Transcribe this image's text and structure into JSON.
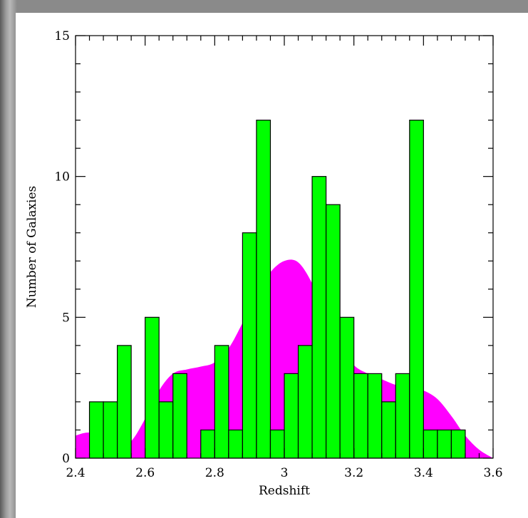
{
  "chart_data": {
    "type": "bar",
    "xlabel": "Redshift",
    "ylabel": "Number of Galaxies",
    "xlim": [
      2.4,
      3.6
    ],
    "ylim": [
      0,
      15
    ],
    "x_ticks": [
      2.4,
      2.6,
      2.8,
      3,
      3.2,
      3.4,
      3.6
    ],
    "x_tick_labels": [
      "2.4",
      "2.6",
      "2.8",
      "3",
      "3.2",
      "3.4",
      "3.6"
    ],
    "y_ticks": [
      0,
      5,
      10,
      15
    ],
    "y_tick_labels": [
      "0",
      "5",
      "10",
      "15"
    ],
    "bin_width": 0.04,
    "histogram": {
      "color": "#00ff00",
      "bin_starts": [
        2.44,
        2.48,
        2.52,
        2.6,
        2.64,
        2.68,
        2.76,
        2.8,
        2.84,
        2.88,
        2.92,
        2.96,
        3.0,
        3.04,
        3.08,
        3.12,
        3.16,
        3.2,
        3.24,
        3.28,
        3.32,
        3.36,
        3.4,
        3.44,
        3.48
      ],
      "values": [
        2,
        2,
        4,
        5,
        2,
        3,
        1,
        4,
        1,
        8,
        12,
        1,
        3,
        4,
        10,
        9,
        5,
        3,
        3,
        2,
        3,
        12,
        1,
        1,
        1
      ]
    },
    "smooth_curve": {
      "color": "#ff00ff",
      "x": [
        2.4,
        2.44,
        2.48,
        2.52,
        2.56,
        2.6,
        2.64,
        2.68,
        2.72,
        2.76,
        2.8,
        2.84,
        2.88,
        2.92,
        2.96,
        3.0,
        3.04,
        3.08,
        3.12,
        3.16,
        3.2,
        3.24,
        3.28,
        3.32,
        3.36,
        3.4,
        3.44,
        3.48,
        3.52,
        3.56,
        3.6
      ],
      "y": [
        0.8,
        0.9,
        0.6,
        0.35,
        0.6,
        1.4,
        2.4,
        3.0,
        3.15,
        3.25,
        3.4,
        3.9,
        4.8,
        5.8,
        6.6,
        7.0,
        6.95,
        6.2,
        5.0,
        4.0,
        3.3,
        3.0,
        2.8,
        2.6,
        2.5,
        2.4,
        2.1,
        1.5,
        0.8,
        0.3,
        0.0
      ]
    }
  }
}
